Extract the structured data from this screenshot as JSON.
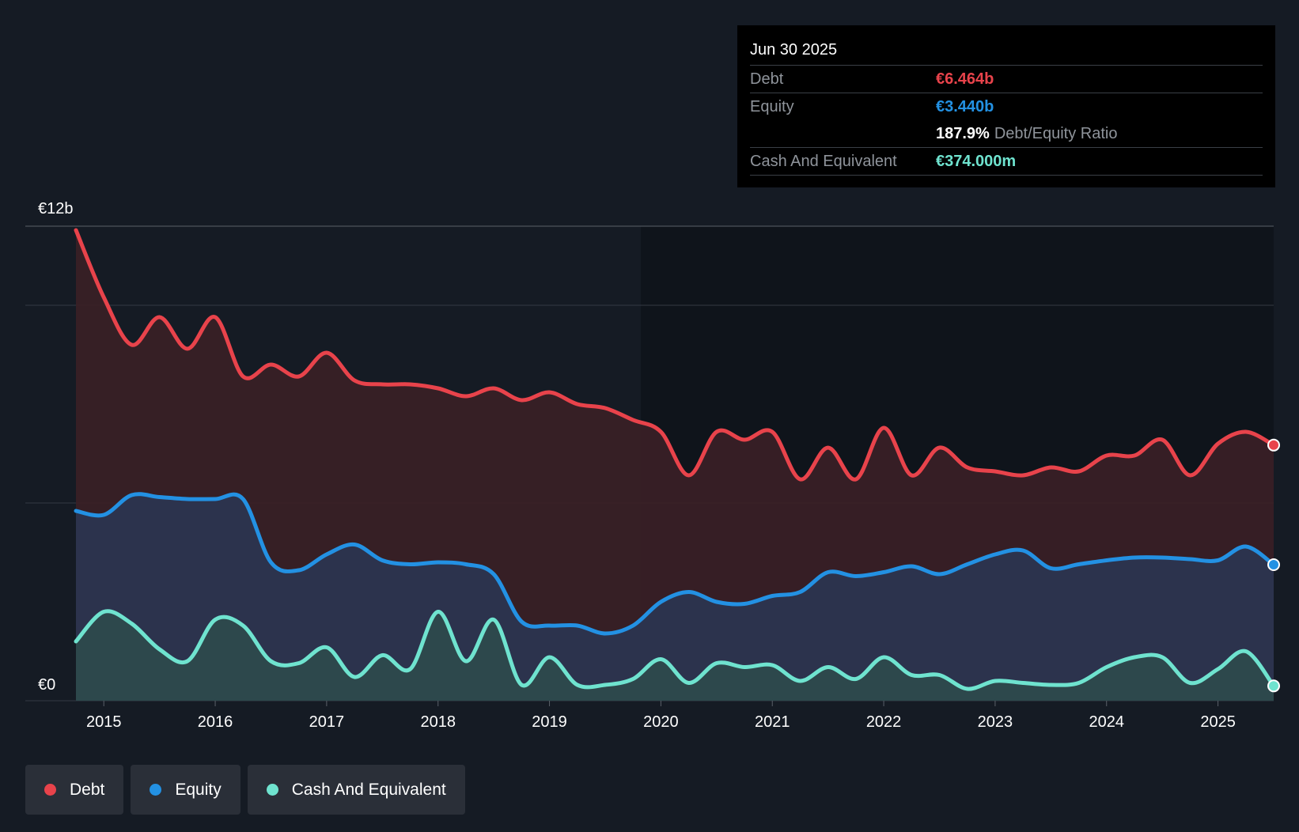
{
  "tooltip": {
    "date": "Jun 30 2025",
    "debt_label": "Debt",
    "debt_value": "€6.464b",
    "equity_label": "Equity",
    "equity_value": "€3.440b",
    "ratio_value": "187.9%",
    "ratio_label": "Debt/Equity Ratio",
    "cash_label": "Cash And Equivalent",
    "cash_value": "€374.000m"
  },
  "legend": {
    "debt": "Debt",
    "equity": "Equity",
    "cash": "Cash And Equivalent"
  },
  "colors": {
    "debt": "#e8434b",
    "equity": "#2391e3",
    "cash": "#6fe3cf"
  },
  "chart_data": {
    "type": "area",
    "title": "",
    "xlabel": "",
    "ylabel": "",
    "y_axis_labels": [
      "€12b",
      "€0"
    ],
    "ylim": [
      0,
      12
    ],
    "xlim": [
      2014.75,
      2025.5
    ],
    "x_ticks": [
      "2015",
      "2016",
      "2017",
      "2018",
      "2019",
      "2020",
      "2021",
      "2022",
      "2023",
      "2024",
      "2025"
    ],
    "series": [
      {
        "name": "Debt",
        "x": [
          2014.75,
          2015.0,
          2015.25,
          2015.5,
          2015.75,
          2016.0,
          2016.25,
          2016.5,
          2016.75,
          2017.0,
          2017.25,
          2017.5,
          2017.75,
          2018.0,
          2018.25,
          2018.5,
          2018.75,
          2019.0,
          2019.25,
          2019.5,
          2019.75,
          2020.0,
          2020.25,
          2020.5,
          2020.75,
          2021.0,
          2021.25,
          2021.5,
          2021.75,
          2022.0,
          2022.25,
          2022.5,
          2022.75,
          2023.0,
          2023.25,
          2023.5,
          2023.75,
          2024.0,
          2024.25,
          2024.5,
          2024.75,
          2025.0,
          2025.25,
          2025.5
        ],
        "values": [
          11.9,
          10.2,
          9.0,
          9.7,
          8.9,
          9.7,
          8.2,
          8.5,
          8.2,
          8.8,
          8.1,
          8.0,
          8.0,
          7.9,
          7.7,
          7.9,
          7.6,
          7.8,
          7.5,
          7.4,
          7.1,
          6.8,
          5.7,
          6.8,
          6.6,
          6.8,
          5.6,
          6.4,
          5.6,
          6.9,
          5.7,
          6.4,
          5.9,
          5.8,
          5.7,
          5.9,
          5.8,
          6.2,
          6.2,
          6.6,
          5.7,
          6.5,
          6.8,
          6.464
        ]
      },
      {
        "name": "Equity",
        "x": [
          2014.75,
          2015.0,
          2015.25,
          2015.5,
          2015.75,
          2016.0,
          2016.25,
          2016.5,
          2016.75,
          2017.0,
          2017.25,
          2017.5,
          2017.75,
          2018.0,
          2018.25,
          2018.5,
          2018.75,
          2019.0,
          2019.25,
          2019.5,
          2019.75,
          2020.0,
          2020.25,
          2020.5,
          2020.75,
          2021.0,
          2021.25,
          2021.5,
          2021.75,
          2022.0,
          2022.25,
          2022.5,
          2022.75,
          2023.0,
          2023.25,
          2023.5,
          2023.75,
          2024.0,
          2024.25,
          2024.5,
          2024.75,
          2025.0,
          2025.25,
          2025.5
        ],
        "values": [
          4.8,
          4.7,
          5.2,
          5.15,
          5.1,
          5.1,
          5.1,
          3.5,
          3.3,
          3.7,
          3.95,
          3.55,
          3.45,
          3.5,
          3.45,
          3.2,
          2.0,
          1.9,
          1.9,
          1.7,
          1.9,
          2.5,
          2.75,
          2.5,
          2.45,
          2.65,
          2.75,
          3.25,
          3.15,
          3.25,
          3.4,
          3.2,
          3.45,
          3.7,
          3.8,
          3.35,
          3.45,
          3.55,
          3.62,
          3.62,
          3.58,
          3.55,
          3.9,
          3.44
        ]
      },
      {
        "name": "Cash And Equivalent",
        "x": [
          2014.75,
          2015.0,
          2015.25,
          2015.5,
          2015.75,
          2016.0,
          2016.25,
          2016.5,
          2016.75,
          2017.0,
          2017.25,
          2017.5,
          2017.75,
          2018.0,
          2018.25,
          2018.5,
          2018.75,
          2019.0,
          2019.25,
          2019.5,
          2019.75,
          2020.0,
          2020.25,
          2020.5,
          2020.75,
          2021.0,
          2021.25,
          2021.5,
          2021.75,
          2022.0,
          2022.25,
          2022.5,
          2022.75,
          2023.0,
          2023.25,
          2023.5,
          2023.75,
          2024.0,
          2024.25,
          2024.5,
          2024.75,
          2025.0,
          2025.25,
          2025.5
        ],
        "values": [
          1.5,
          2.25,
          1.95,
          1.3,
          1.0,
          2.05,
          1.9,
          1.0,
          0.95,
          1.35,
          0.6,
          1.15,
          0.8,
          2.25,
          1.0,
          2.05,
          0.4,
          1.1,
          0.4,
          0.4,
          0.55,
          1.05,
          0.45,
          0.95,
          0.85,
          0.9,
          0.5,
          0.85,
          0.55,
          1.1,
          0.65,
          0.65,
          0.3,
          0.5,
          0.45,
          0.4,
          0.45,
          0.85,
          1.1,
          1.1,
          0.45,
          0.8,
          1.25,
          0.374
        ]
      }
    ],
    "grid": true,
    "legend_position": "bottom-left"
  }
}
